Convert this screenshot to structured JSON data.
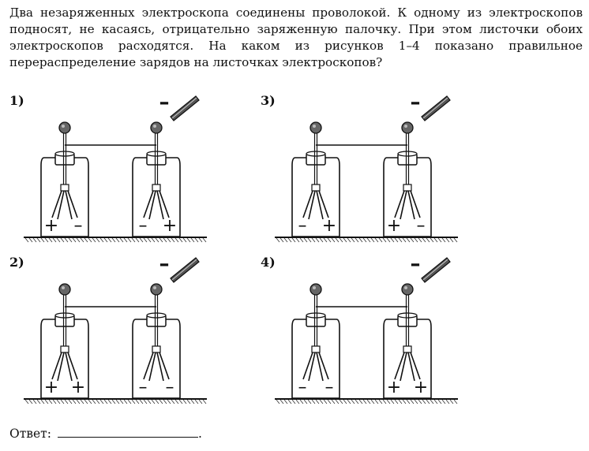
{
  "question": {
    "lines": [
      "Два незаряженных электроскопа соединены проволокой. К одному из электроскопов",
      "подносят, не касаясь, отрицательно заряженную палочку. При этом листочки обоих",
      "электроскопов расходятся. На каком из рисунков 1–4 показано правильное",
      "перераспределение зарядов на листочках электроскопов?"
    ]
  },
  "figures": [
    {
      "label": "1)",
      "rod_sign": "–",
      "left": {
        "left_sign": "+",
        "right_sign": "–"
      },
      "right": {
        "left_sign": "–",
        "right_sign": "+"
      }
    },
    {
      "label": "3)",
      "rod_sign": "–",
      "left": {
        "left_sign": "–",
        "right_sign": "+"
      },
      "right": {
        "left_sign": "+",
        "right_sign": "–"
      }
    },
    {
      "label": "2)",
      "rod_sign": "–",
      "left": {
        "left_sign": "+",
        "right_sign": "+"
      },
      "right": {
        "left_sign": "–",
        "right_sign": "–"
      }
    },
    {
      "label": "4)",
      "rod_sign": "–",
      "left": {
        "left_sign": "–",
        "right_sign": "–"
      },
      "right": {
        "left_sign": "+",
        "right_sign": "+"
      }
    }
  ],
  "answer": {
    "label": "Ответ:",
    "end": "."
  }
}
